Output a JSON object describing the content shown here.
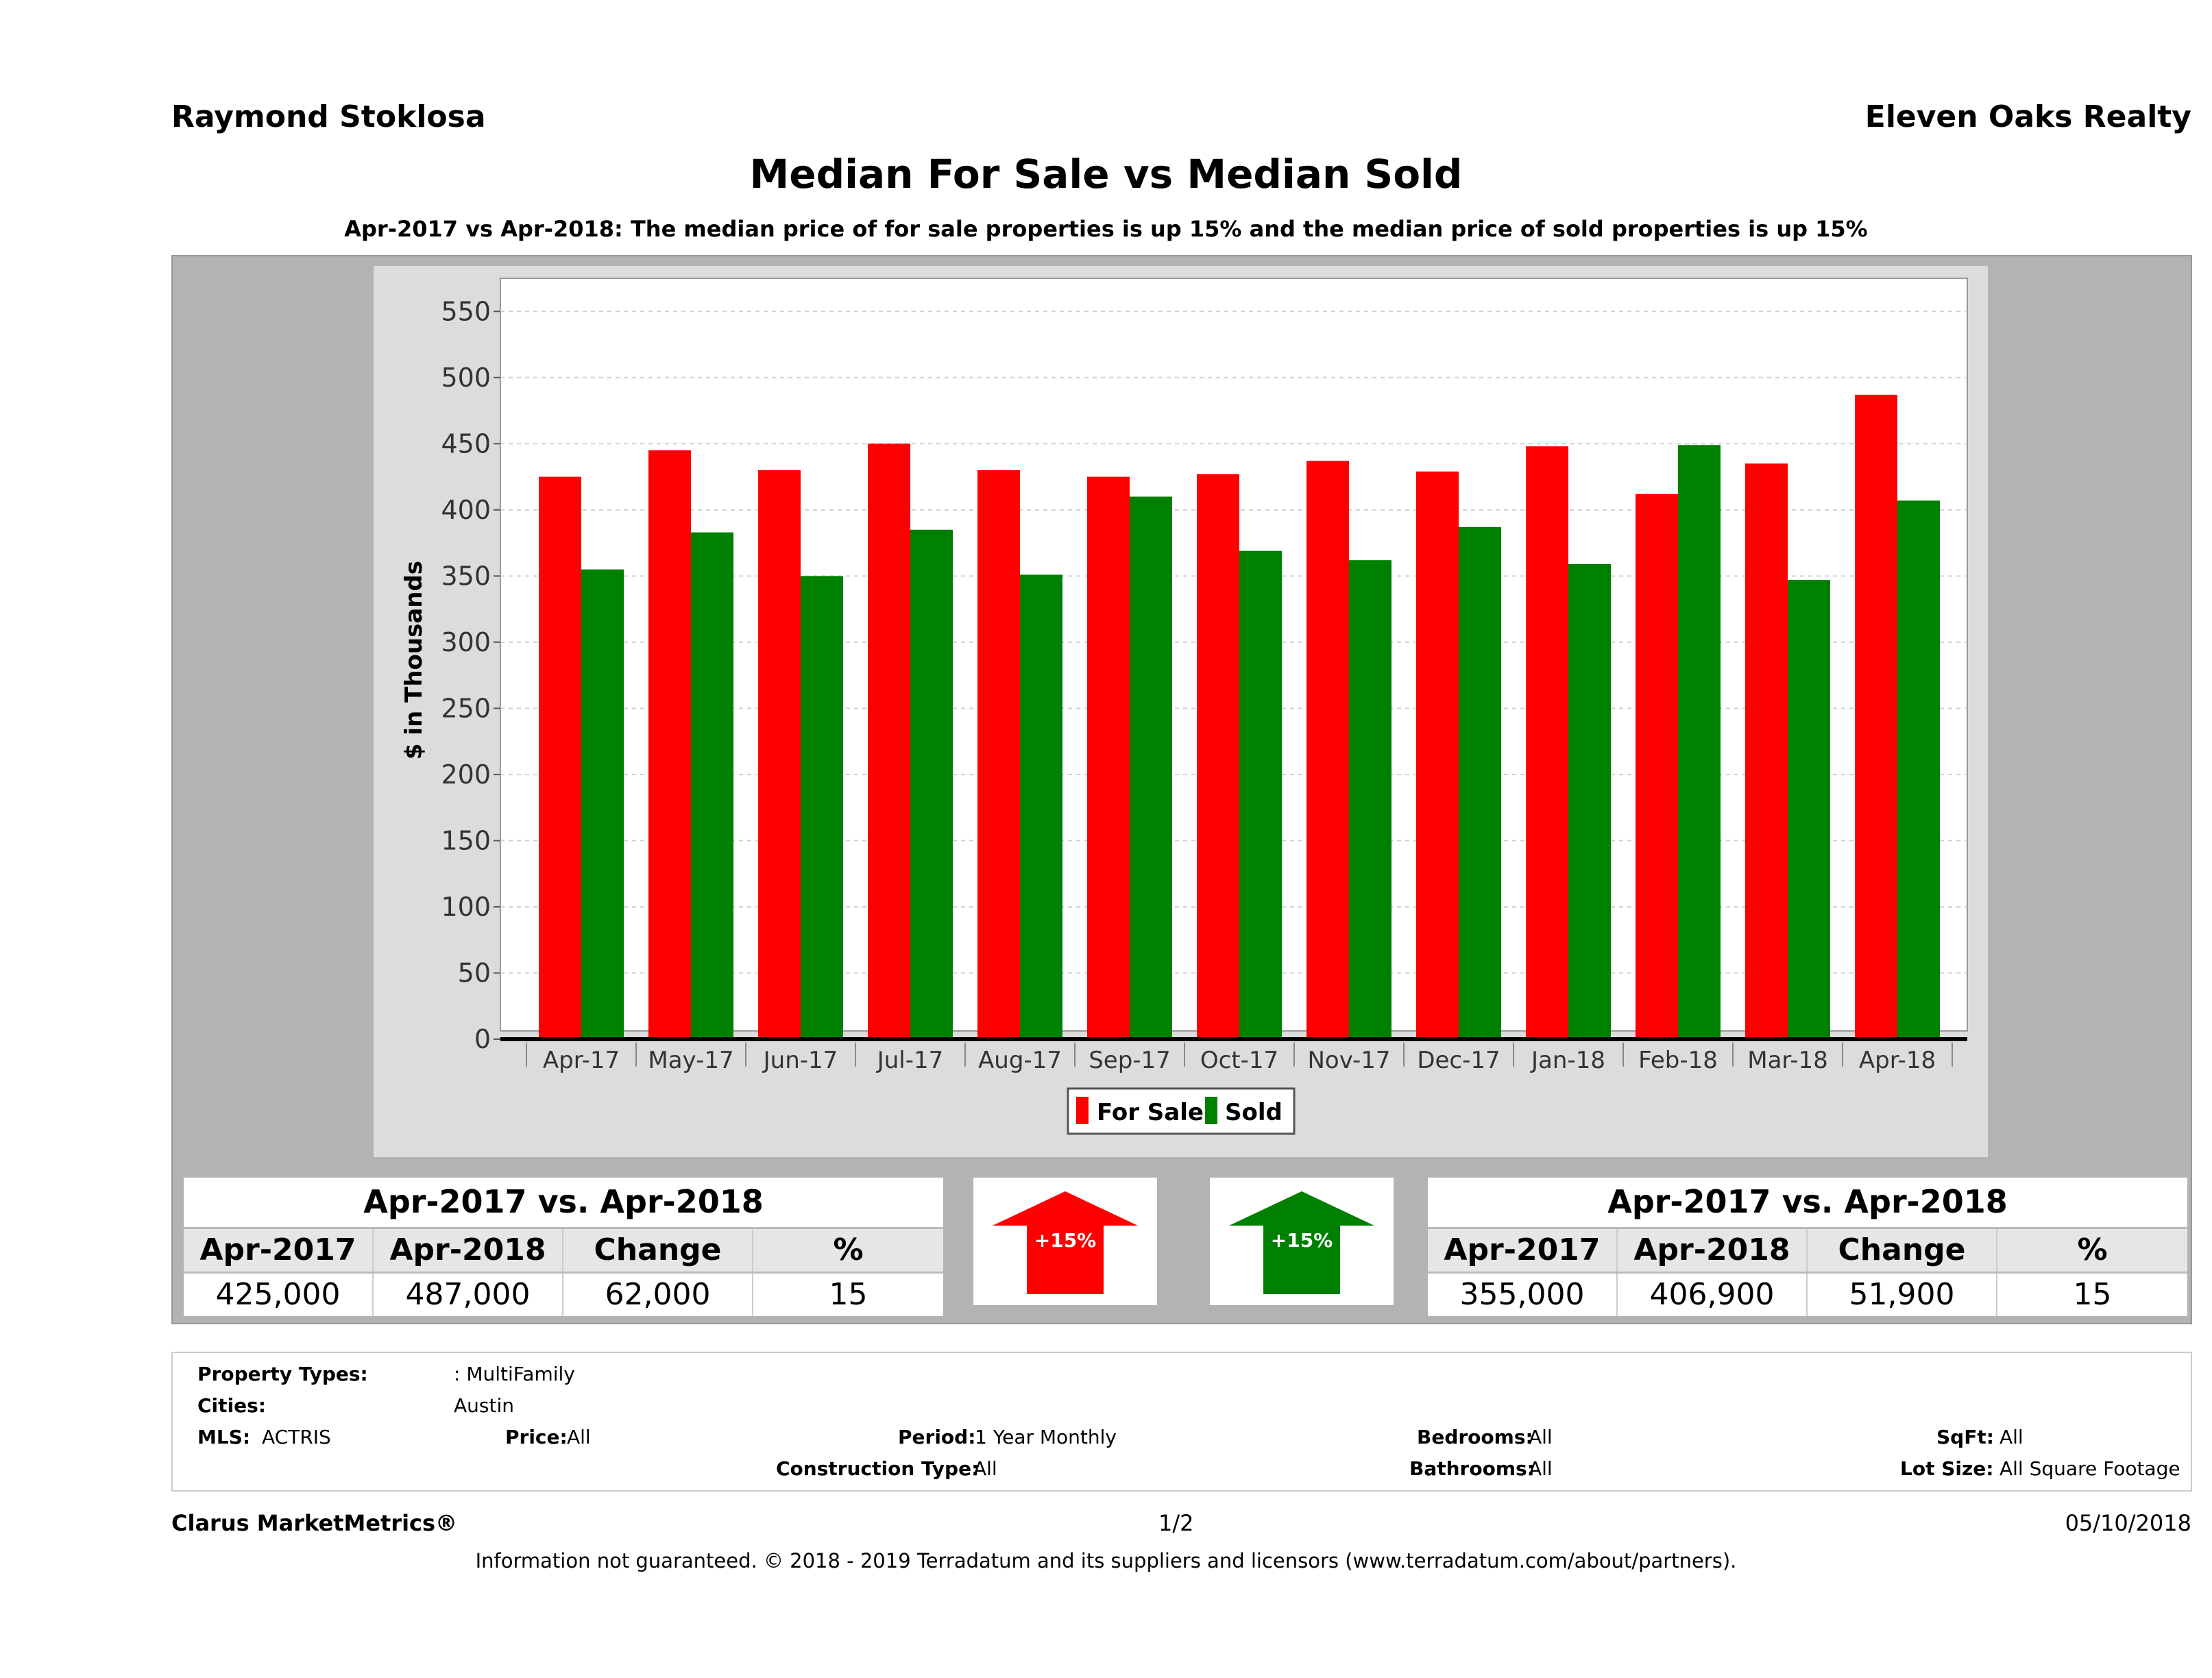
{
  "header": {
    "agent": "Raymond Stoklosa",
    "brokerage": "Eleven Oaks Realty",
    "title": "Median For Sale vs Median Sold",
    "subtitle": "Apr-2017 vs Apr-2018: The median price of for sale properties is up 15% and the median price of sold properties is up 15%"
  },
  "chart_data": {
    "type": "bar",
    "ylabel": "$ in Thousands",
    "xlabel": "",
    "ylim": [
      0,
      575
    ],
    "yticks": [
      "0",
      "50",
      "100",
      "150",
      "200",
      "250",
      "300",
      "350",
      "400",
      "450",
      "500",
      "550"
    ],
    "categories": [
      "Apr-17",
      "May-17",
      "Jun-17",
      "Jul-17",
      "Aug-17",
      "Sep-17",
      "Oct-17",
      "Nov-17",
      "Dec-17",
      "Jan-18",
      "Feb-18",
      "Mar-18",
      "Apr-18"
    ],
    "series": [
      {
        "name": "For Sale",
        "color": "#ff0000",
        "values": [
          425,
          445,
          430,
          450,
          430,
          425,
          427,
          437,
          429,
          448,
          412,
          435,
          487
        ]
      },
      {
        "name": "Sold",
        "color": "#008000",
        "values": [
          355,
          383,
          350,
          385,
          351,
          410,
          369,
          362,
          387,
          359,
          449,
          347,
          407
        ]
      }
    ],
    "legend_position": "bottom",
    "grid": true
  },
  "for_sale_summary": {
    "title": "Apr-2017 vs. Apr-2018",
    "headers": [
      "Apr-2017",
      "Apr-2018",
      "Change",
      "%"
    ],
    "values": [
      "425,000",
      "487,000",
      "62,000",
      "15"
    ],
    "arrow_label": "+15%",
    "arrow_color": "#ff0000"
  },
  "sold_summary": {
    "title": "Apr-2017 vs. Apr-2018",
    "headers": [
      "Apr-2017",
      "Apr-2018",
      "Change",
      "%"
    ],
    "values": [
      "355,000",
      "406,900",
      "51,900",
      "15"
    ],
    "arrow_label": "+15%",
    "arrow_color": "#008000"
  },
  "filters": {
    "property_types_label": "Property Types:",
    "property_types_value": ": MultiFamily",
    "cities_label": "Cities:",
    "cities_value": "Austin",
    "mls_label": "MLS:",
    "mls_value": "ACTRIS",
    "price_label": "Price:",
    "price_value": "All",
    "period_label": "Period:",
    "period_value": "1 Year Monthly",
    "construction_label": "Construction Type:",
    "construction_value": "All",
    "bedrooms_label": "Bedrooms:",
    "bedrooms_value": "All",
    "bathrooms_label": "Bathrooms:",
    "bathrooms_value": "All",
    "sqft_label": "SqFt:",
    "sqft_value": "All",
    "lot_label": "Lot Size:",
    "lot_value": "All Square Footage"
  },
  "footer": {
    "product": "Clarus MarketMetrics®",
    "page": "1/2",
    "date": "05/10/2018",
    "disclaimer": "Information not guaranteed. © 2018 - 2019 Terradatum and its suppliers and licensors (www.terradatum.com/about/partners)."
  }
}
